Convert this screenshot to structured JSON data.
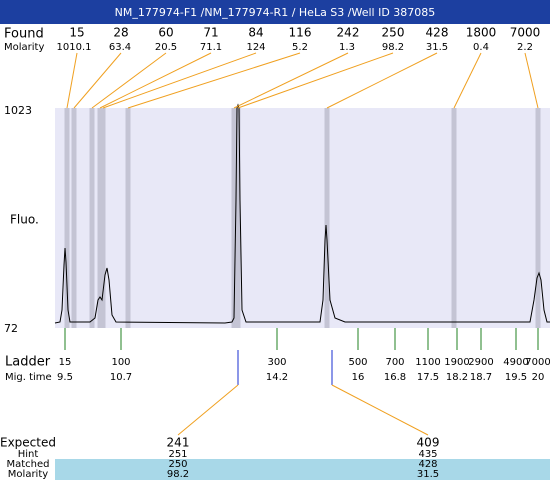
{
  "header": {
    "title": "NM_177974-F1 /NM_177974-R1 / HeLa S3 /Well ID 387085"
  },
  "found": {
    "label": "Found",
    "values": [
      15,
      28,
      60,
      71,
      84,
      116,
      242,
      250,
      428,
      1800,
      7000
    ]
  },
  "molarity": {
    "label": "Molarity",
    "values": [
      1010.1,
      63.4,
      20.5,
      71.1,
      124,
      5.2,
      1.3,
      98.2,
      31.5,
      0.4,
      2.2
    ]
  },
  "axis": {
    "top": "1023",
    "bottom": "72",
    "label": "Fluo."
  },
  "ladder": {
    "label": "Ladder",
    "sizes": [
      15,
      100,
      300,
      500,
      700,
      1100,
      1900,
      2900,
      4900,
      7000
    ]
  },
  "mig_time": {
    "label": "Mig. time",
    "values": [
      9.5,
      10.7,
      14.2,
      16,
      16.8,
      17.5,
      18.2,
      18.7,
      19.5,
      20
    ]
  },
  "results": {
    "labels": [
      "Expected",
      "Hint",
      "Matched",
      "Molarity"
    ],
    "columns": [
      [
        241,
        251,
        250,
        98.2
      ],
      [
        409,
        435,
        428,
        31.5
      ]
    ]
  }
}
